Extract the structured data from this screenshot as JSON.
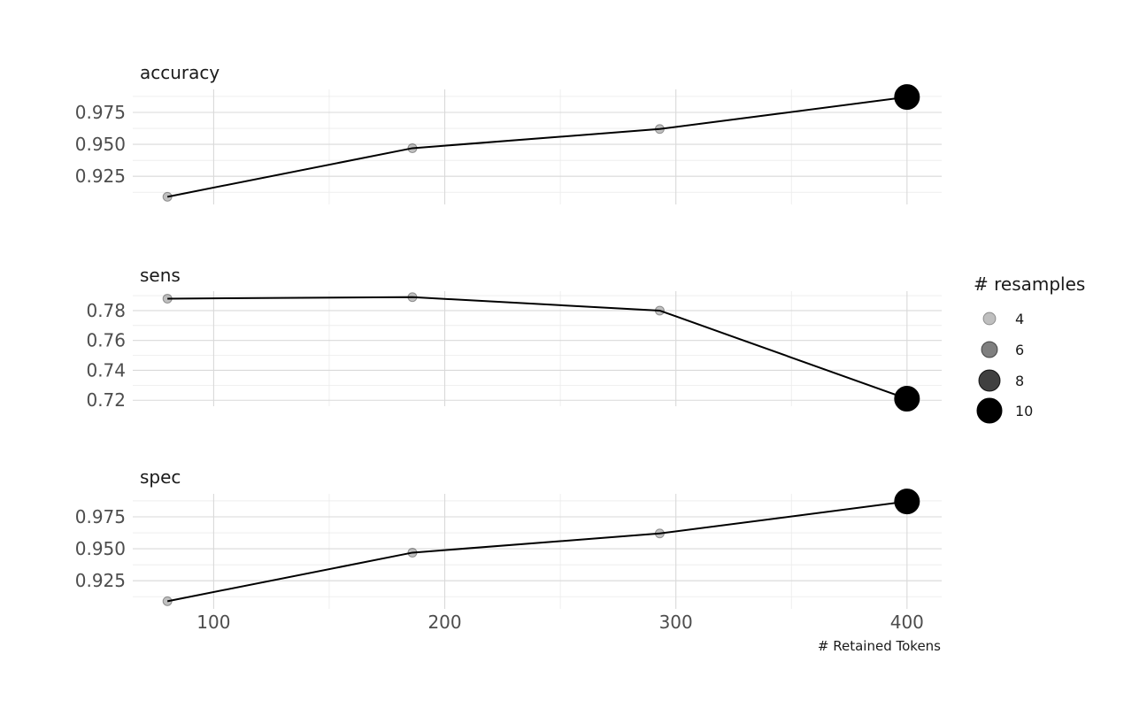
{
  "chart_data": {
    "type": "line",
    "x": [
      80,
      186,
      293,
      400
    ],
    "xlabel": "# Retained Tokens",
    "xlim": [
      65,
      415
    ],
    "xticks": [
      100,
      200,
      300,
      400
    ],
    "facets": [
      {
        "name": "accuracy",
        "values": [
          0.909,
          0.947,
          0.962,
          0.987
        ],
        "resamples": [
          4,
          4,
          4,
          10
        ],
        "ylim": [
          0.903,
          0.993
        ],
        "yticks": [
          "0.925",
          "0.950",
          "0.975"
        ],
        "ytick_values": [
          0.925,
          0.95,
          0.975
        ]
      },
      {
        "name": "sens",
        "values": [
          0.788,
          0.789,
          0.78,
          0.721
        ],
        "resamples": [
          4,
          4,
          4,
          10
        ],
        "ylim": [
          0.716,
          0.793
        ],
        "yticks": [
          "0.78",
          "0.76",
          "0.74",
          "0.72"
        ],
        "ytick_values": [
          0.78,
          0.76,
          0.74,
          0.72
        ]
      },
      {
        "name": "spec",
        "values": [
          0.909,
          0.947,
          0.962,
          0.987
        ],
        "resamples": [
          4,
          4,
          4,
          10
        ],
        "ylim": [
          0.903,
          0.993
        ],
        "yticks": [
          "0.925",
          "0.950",
          "0.975"
        ],
        "ytick_values": [
          0.925,
          0.95,
          0.975
        ]
      }
    ],
    "legend": {
      "title": "# resamples",
      "placement": "right",
      "items": [
        {
          "label": "4",
          "value": 4,
          "opacity": 0.25
        },
        {
          "label": "6",
          "value": 6,
          "opacity": 0.5
        },
        {
          "label": "8",
          "value": 8,
          "opacity": 0.75
        },
        {
          "label": "10",
          "value": 10,
          "opacity": 1.0
        }
      ]
    },
    "grid": true,
    "colors": {
      "line": "#000000",
      "point": "#000000",
      "grid": "#d9d9d9"
    }
  }
}
